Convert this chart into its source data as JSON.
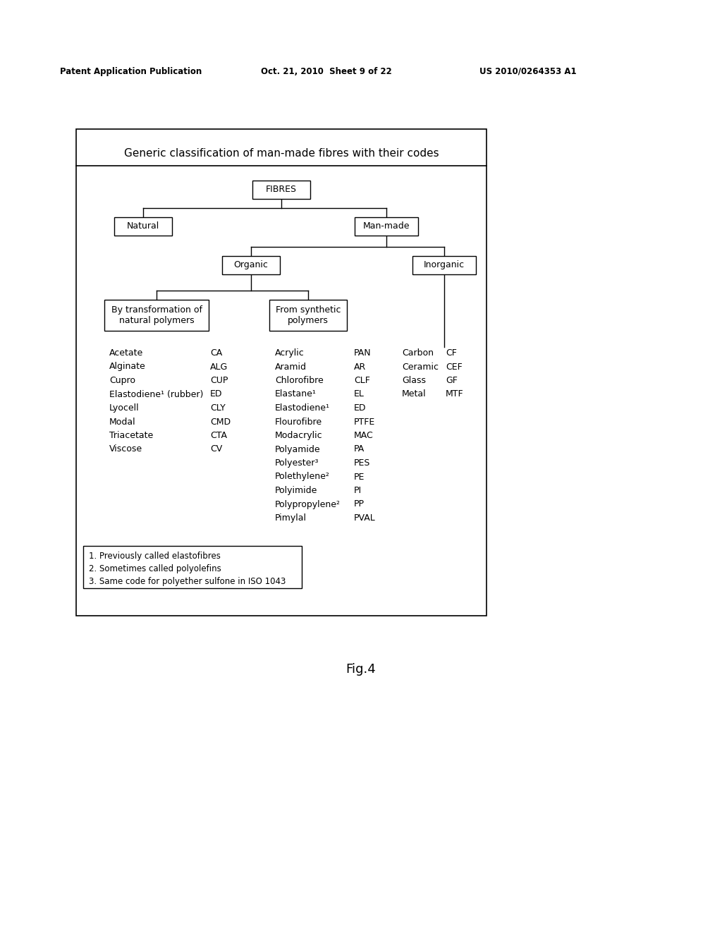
{
  "title": "Generic classification of man-made fibres with their codes",
  "fig_label": "Fig.4",
  "patent_header": "Patent Application Publication",
  "patent_date": "Oct. 21, 2010  Sheet 9 of 22",
  "patent_num": "US 2010/0264353 A1",
  "left_col1_items": [
    "Acetate",
    "Alginate",
    "Cupro",
    "Elastodiene¹ (rubber)",
    "Lyocell",
    "Modal",
    "Triacetate",
    "Viscose"
  ],
  "left_col2_items": [
    "CA",
    "ALG",
    "CUP",
    "ED",
    "CLY",
    "CMD",
    "CTA",
    "CV"
  ],
  "right_col1_items": [
    "Acrylic",
    "Aramid",
    "Chlorofibre",
    "Elastane¹",
    "Elastodiene¹",
    "Flourofibre",
    "Modacrylic",
    "Polyamide",
    "Polyester³",
    "Polethylene²",
    "Polyimide",
    "Polypropylene²",
    "Pimylal"
  ],
  "right_col2_items": [
    "PAN",
    "AR",
    "CLF",
    "EL",
    "ED",
    "PTFE",
    "MAC",
    "PA",
    "PES",
    "PE",
    "PI",
    "PP",
    "PVAL"
  ],
  "inorg_col1_items": [
    "Carbon",
    "Ceramic",
    "Glass",
    "Metal"
  ],
  "inorg_col2_items": [
    "CF",
    "CEF",
    "GF",
    "MTF"
  ],
  "footnotes": [
    "1. Previously called elastofibres",
    "2. Sometimes called polyolefins",
    "3. Same code for polyether sulfone in ISO 1043"
  ],
  "bg_color": "#ffffff",
  "line_color": "#000000",
  "text_color": "#000000"
}
